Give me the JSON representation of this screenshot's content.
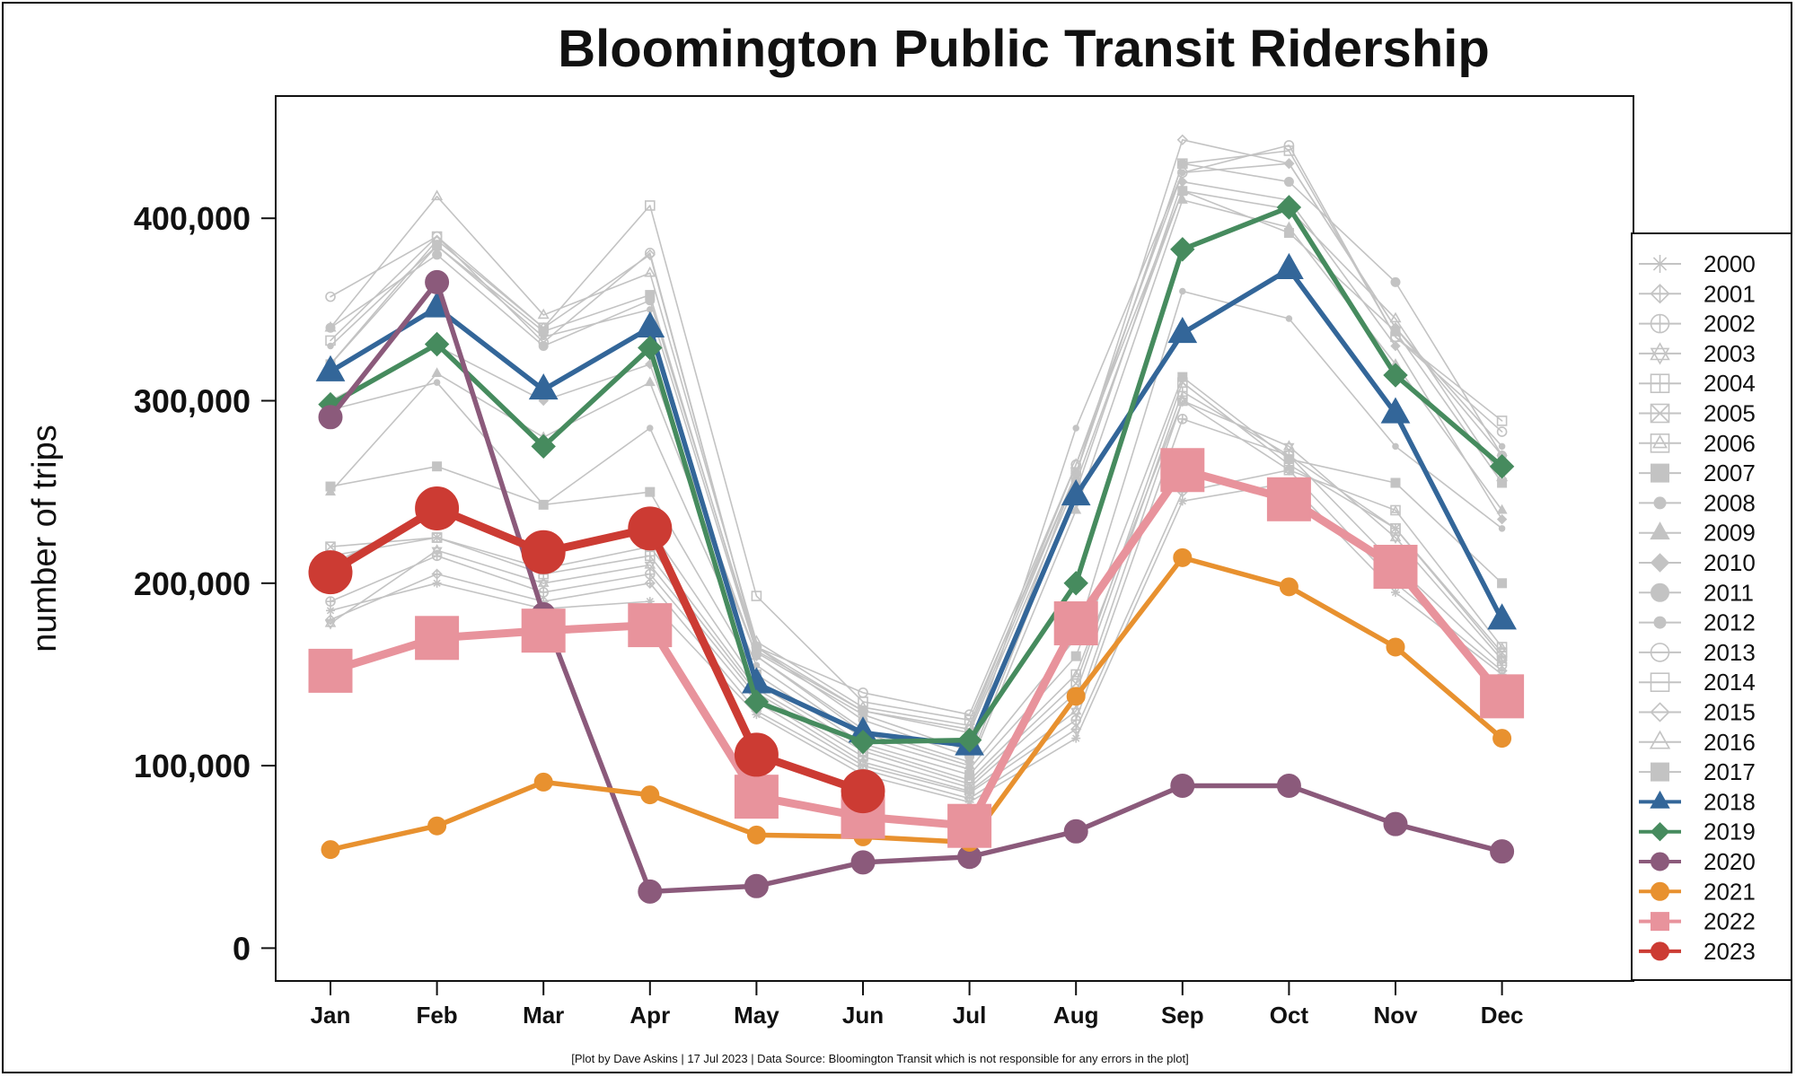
{
  "chart_data": {
    "type": "line",
    "title": "Bloomington Public Transit Ridership",
    "ylabel": "number of trips",
    "xlabel": "",
    "caption": "[Plot by Dave Askins | 17 Jul 2023 | Data Source: Bloomington Transit which is not responsible for any errors in the plot]",
    "categories": [
      "Jan",
      "Feb",
      "Mar",
      "Apr",
      "May",
      "Jun",
      "Jul",
      "Aug",
      "Sep",
      "Oct",
      "Nov",
      "Dec"
    ],
    "ylim": [
      -18000,
      467000
    ],
    "yticks": [
      0,
      100000,
      200000,
      300000,
      400000
    ],
    "ytick_labels": [
      "0",
      "100,000",
      "200,000",
      "300,000",
      "400,000"
    ],
    "legend_position": "right",
    "series": [
      {
        "name": "2000",
        "color": "#c3c3c3",
        "marker": "asterisk",
        "emphasis": false,
        "values": [
          185000,
          200000,
          186000,
          190000,
          128000,
          95000,
          80000,
          115000,
          245000,
          255000,
          195000,
          150000
        ]
      },
      {
        "name": "2001",
        "color": "#c3c3c3",
        "marker": "diamond-plus",
        "emphasis": false,
        "values": [
          180000,
          205000,
          190000,
          200000,
          130000,
          98000,
          82000,
          120000,
          250000,
          262000,
          200000,
          152000
        ]
      },
      {
        "name": "2002",
        "color": "#c3c3c3",
        "marker": "circle-plus",
        "emphasis": false,
        "values": [
          190000,
          215000,
          195000,
          205000,
          135000,
          100000,
          85000,
          125000,
          290000,
          270000,
          210000,
          155000
        ]
      },
      {
        "name": "2003",
        "color": "#c3c3c3",
        "marker": "star",
        "emphasis": false,
        "values": [
          178000,
          218000,
          200000,
          210000,
          138000,
          102000,
          86000,
          130000,
          300000,
          275000,
          225000,
          158000
        ]
      },
      {
        "name": "2004",
        "color": "#c3c3c3",
        "marker": "square-plus",
        "emphasis": false,
        "values": [
          215000,
          225000,
          205000,
          215000,
          140000,
          105000,
          88000,
          140000,
          305000,
          270000,
          230000,
          160000
        ]
      },
      {
        "name": "2005",
        "color": "#c3c3c3",
        "marker": "square-x",
        "emphasis": false,
        "values": [
          220000,
          225000,
          208000,
          220000,
          142000,
          108000,
          90000,
          145000,
          310000,
          265000,
          230000,
          162000
        ]
      },
      {
        "name": "2006",
        "color": "#c3c3c3",
        "marker": "square-triangle",
        "emphasis": false,
        "values": [
          210000,
          240000,
          215000,
          230000,
          145000,
          110000,
          92000,
          150000,
          300000,
          262000,
          240000,
          165000
        ]
      },
      {
        "name": "2007",
        "color": "#c3c3c3",
        "marker": "square",
        "emphasis": false,
        "values": [
          253000,
          264000,
          243000,
          250000,
          150000,
          112000,
          95000,
          160000,
          313000,
          268000,
          255000,
          200000
        ]
      },
      {
        "name": "2008",
        "color": "#c3c3c3",
        "marker": "circle-small",
        "emphasis": false,
        "values": [
          295000,
          310000,
          243000,
          285000,
          155000,
          115000,
          98000,
          170000,
          360000,
          345000,
          275000,
          230000
        ]
      },
      {
        "name": "2009",
        "color": "#c3c3c3",
        "marker": "triangle",
        "emphasis": false,
        "values": [
          250000,
          315000,
          280000,
          310000,
          160000,
          118000,
          100000,
          240000,
          410000,
          395000,
          320000,
          240000
        ]
      },
      {
        "name": "2010",
        "color": "#c3c3c3",
        "marker": "diamond",
        "emphasis": false,
        "values": [
          300000,
          330000,
          300000,
          320000,
          160000,
          120000,
          102000,
          250000,
          420000,
          410000,
          330000,
          235000
        ]
      },
      {
        "name": "2011",
        "color": "#c3c3c3",
        "marker": "circle",
        "emphasis": false,
        "values": [
          340000,
          380000,
          330000,
          355000,
          165000,
          125000,
          105000,
          260000,
          430000,
          420000,
          365000,
          270000
        ]
      },
      {
        "name": "2012",
        "color": "#c3c3c3",
        "marker": "circle-small",
        "emphasis": false,
        "values": [
          330000,
          385000,
          335000,
          350000,
          162000,
          128000,
          108000,
          285000,
          425000,
          430000,
          340000,
          275000
        ]
      },
      {
        "name": "2013",
        "color": "#c3c3c3",
        "marker": "circle-open",
        "emphasis": false,
        "values": [
          357000,
          390000,
          332000,
          381000,
          165000,
          140000,
          128000,
          265000,
          425000,
          440000,
          335000,
          283000
        ]
      },
      {
        "name": "2014",
        "color": "#c3c3c3",
        "marker": "square-open",
        "emphasis": false,
        "values": [
          333000,
          390000,
          340000,
          407000,
          193000,
          135000,
          125000,
          260000,
          430000,
          437000,
          335000,
          289000
        ]
      },
      {
        "name": "2015",
        "color": "#c3c3c3",
        "marker": "diamond-open",
        "emphasis": false,
        "values": [
          320000,
          388000,
          340000,
          380000,
          165000,
          130000,
          120000,
          260000,
          443000,
          430000,
          340000,
          270000
        ]
      },
      {
        "name": "2016",
        "color": "#c3c3c3",
        "marker": "triangle-open",
        "emphasis": false,
        "values": [
          340000,
          412000,
          347000,
          370000,
          168000,
          132000,
          122000,
          265000,
          415000,
          405000,
          345000,
          258000
        ]
      },
      {
        "name": "2017",
        "color": "#c3c3c3",
        "marker": "square",
        "emphasis": false,
        "values": [
          320000,
          385000,
          338000,
          358000,
          163000,
          130000,
          118000,
          255000,
          415000,
          392000,
          338000,
          255000
        ]
      },
      {
        "name": "2018",
        "color": "#336699",
        "marker": "triangle",
        "emphasis": true,
        "size": "medium",
        "values": [
          316000,
          351000,
          306000,
          340000,
          145000,
          118000,
          111000,
          248000,
          337000,
          372000,
          293000,
          180000
        ]
      },
      {
        "name": "2019",
        "color": "#468b5e",
        "marker": "diamond",
        "emphasis": true,
        "size": "small",
        "values": [
          298000,
          331000,
          275000,
          329000,
          135000,
          113000,
          114000,
          200000,
          383000,
          406000,
          314000,
          264000
        ]
      },
      {
        "name": "2020",
        "color": "#8b5a7b",
        "marker": "circle",
        "emphasis": true,
        "size": "small",
        "values": [
          291000,
          365000,
          183000,
          31000,
          34000,
          47000,
          50000,
          64000,
          89000,
          89000,
          68000,
          53000
        ]
      },
      {
        "name": "2021",
        "color": "#e8912f",
        "marker": "circle",
        "emphasis": true,
        "size": "tiny",
        "values": [
          54000,
          67000,
          91000,
          84000,
          62000,
          61000,
          58000,
          138000,
          214000,
          198000,
          165000,
          115000
        ]
      },
      {
        "name": "2022",
        "color": "#e8939c",
        "marker": "square",
        "emphasis": true,
        "size": "large",
        "values": [
          152000,
          170000,
          174000,
          177000,
          83000,
          72000,
          67000,
          178000,
          262000,
          246000,
          209000,
          138000
        ]
      },
      {
        "name": "2023",
        "color": "#cc3b33",
        "marker": "circle",
        "emphasis": true,
        "size": "large",
        "values": [
          206000,
          241000,
          217000,
          230000,
          106000,
          86000,
          null,
          null,
          null,
          null,
          null,
          null
        ]
      }
    ]
  }
}
